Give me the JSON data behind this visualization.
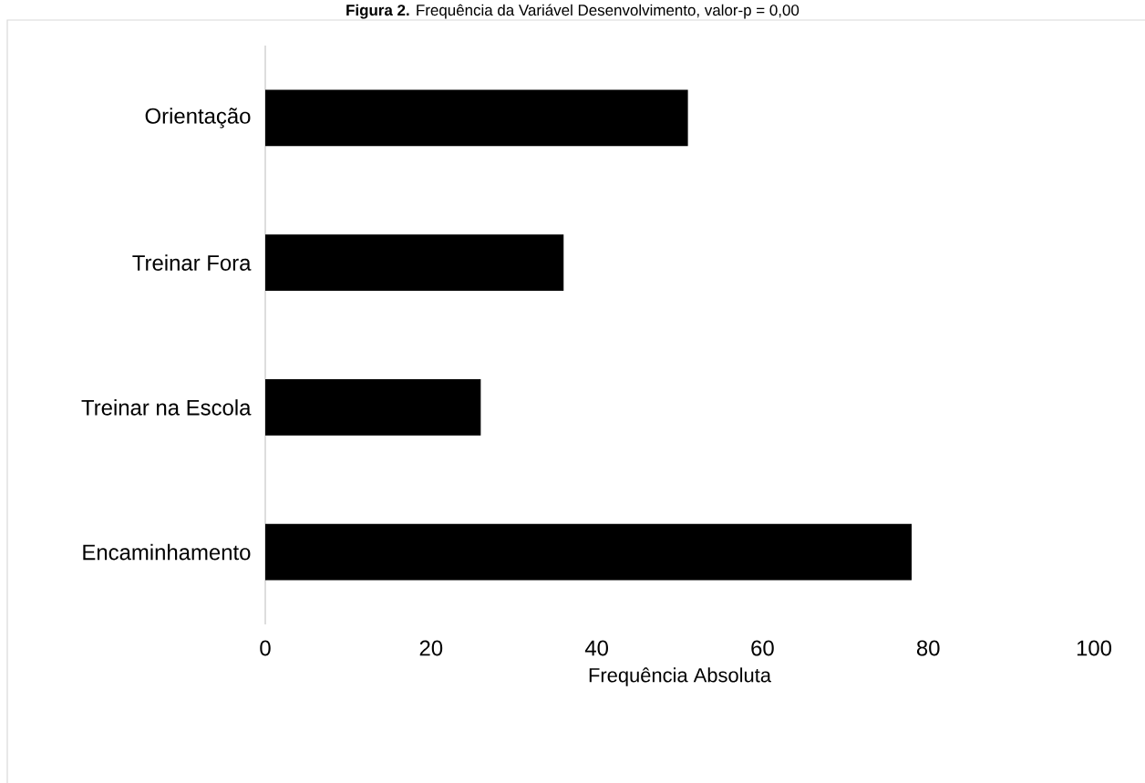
{
  "chart_data": {
    "type": "bar",
    "orientation": "horizontal",
    "title": "**Figura 2.** Frequência da Variável Desenvolvimento, valor-p = 0,00",
    "categories": [
      "Orientação",
      "Treinar Fora",
      "Treinar na Escola",
      "Encaminhamento"
    ],
    "values": [
      51,
      36,
      26,
      78
    ],
    "color": "#000000",
    "xlabel": "Frequência Absoluta",
    "xlim": [
      0,
      100
    ],
    "xticks": [
      0,
      20,
      40,
      60,
      80,
      100
    ],
    "grid": false
  }
}
